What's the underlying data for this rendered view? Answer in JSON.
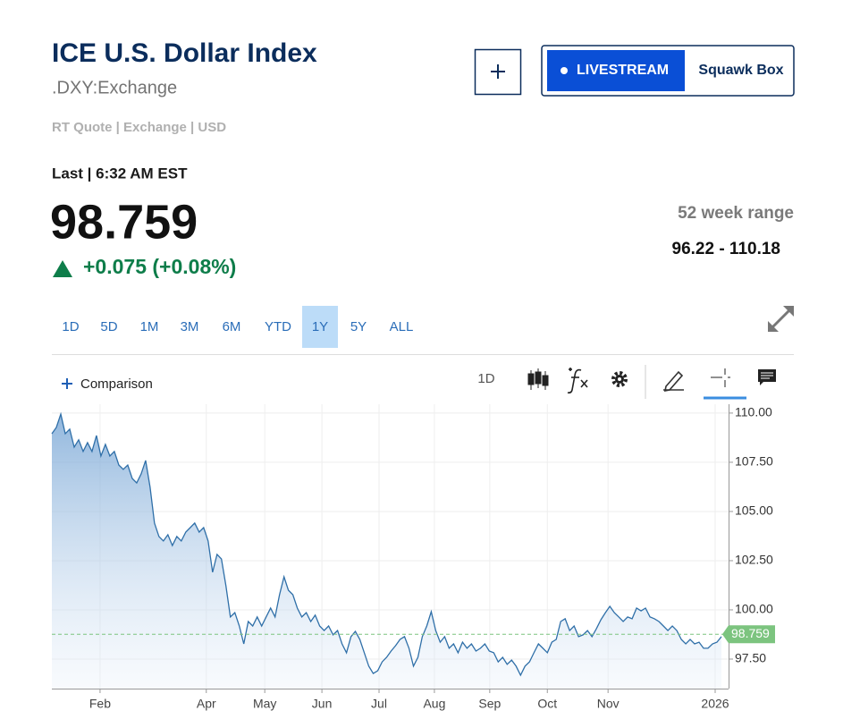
{
  "header": {
    "title": "ICE U.S. Dollar Index",
    "symbol": ".DXY:Exchange",
    "quote_info": "RT Quote | Exchange | USD",
    "livestream": "LIVESTREAM",
    "show": "Squawk Box"
  },
  "quote": {
    "last_label": "Last | 6:32 AM EST",
    "price": "98.759",
    "change": "+0.075 (+0.08%)",
    "range_label": "52 week range",
    "range": "96.22 - 110.18"
  },
  "range_tabs": [
    "1D",
    "5D",
    "1M",
    "3M",
    "6M",
    "YTD",
    "1Y",
    "5Y",
    "ALL"
  ],
  "selected_tab": 6,
  "toolbar": {
    "comparison": "Comparison",
    "interval": "1D"
  },
  "chart_data": {
    "type": "line",
    "color": "#2f6fa8",
    "values": [
      108.95,
      109.27,
      109.95,
      108.95,
      109.18,
      108.27,
      108.64,
      108.05,
      108.5,
      108.05,
      108.86,
      107.82,
      108.41,
      107.82,
      108.05,
      107.36,
      107.14,
      107.36,
      106.68,
      106.45,
      106.91,
      107.59,
      106.23,
      104.41,
      103.73,
      103.5,
      103.82,
      103.27,
      103.73,
      103.5,
      103.95,
      104.18,
      104.41,
      103.95,
      104.18,
      103.5,
      101.91,
      102.82,
      102.59,
      101.23,
      99.64,
      99.86,
      99.18,
      98.27,
      99.41,
      99.18,
      99.64,
      99.18,
      99.64,
      100.09,
      99.64,
      100.77,
      101.68,
      101,
      100.77,
      100.09,
      99.64,
      99.86,
      99.41,
      99.73,
      99.18,
      98.95,
      99.18,
      98.73,
      98.95,
      98.27,
      97.82,
      98.64,
      98.91,
      98.5,
      97.82,
      97.14,
      96.77,
      96.91,
      97.36,
      97.59,
      97.91,
      98.18,
      98.5,
      98.64,
      98.05,
      97.14,
      97.59,
      98.64,
      99.18,
      99.91,
      98.95,
      98.36,
      98.64,
      98.05,
      98.27,
      97.82,
      98.36,
      98.05,
      98.27,
      97.91,
      98.05,
      98.27,
      97.91,
      97.82,
      97.36,
      97.59,
      97.23,
      97.45,
      97.14,
      96.68,
      97.14,
      97.36,
      97.82,
      98.27,
      98.05,
      97.82,
      98.36,
      98.5,
      99.41,
      99.55,
      98.95,
      99.18,
      98.64,
      98.73,
      98.95,
      98.64,
      99.05,
      99.5,
      99.86,
      100.18,
      99.86,
      99.64,
      99.41,
      99.64,
      99.55,
      100.09,
      99.95,
      100.09,
      99.64,
      99.55,
      99.41,
      99.18,
      98.95,
      99.18,
      98.95,
      98.5,
      98.27,
      98.5,
      98.27,
      98.36,
      98.05,
      98.05,
      98.27,
      98.36,
      98.64
    ],
    "last": 98.759,
    "last_color": "#7cc47f",
    "ylim": [
      96.0,
      110.45
    ],
    "yticks": [
      {
        "value": 97.5,
        "label": "97.50"
      },
      {
        "value": 100,
        "label": "100.00"
      },
      {
        "value": 102.5,
        "label": "102.50"
      },
      {
        "value": 105,
        "label": "105.00"
      },
      {
        "value": 107.5,
        "label": "107.50"
      },
      {
        "value": 110,
        "label": "110.00"
      }
    ],
    "xticks": [
      {
        "value": 10.8,
        "label": "Feb"
      },
      {
        "value": 34.6,
        "label": "Apr"
      },
      {
        "value": 47.7,
        "label": "May"
      },
      {
        "value": 60.5,
        "label": "Jun"
      },
      {
        "value": 73.3,
        "label": "Jul"
      },
      {
        "value": 85.7,
        "label": "Aug"
      },
      {
        "value": 98.1,
        "label": "Sep"
      },
      {
        "value": 111,
        "label": "Oct"
      },
      {
        "value": 124.6,
        "label": "Nov"
      },
      {
        "value": 148.6,
        "label": "2026"
      }
    ],
    "grid": true
  }
}
